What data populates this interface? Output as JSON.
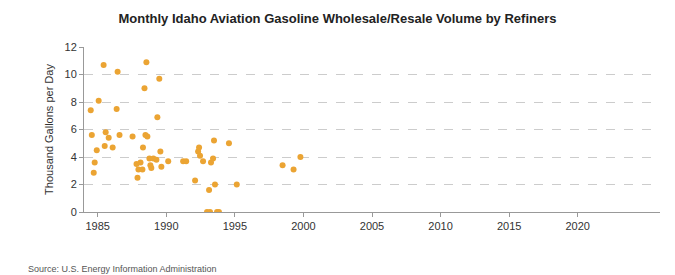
{
  "chart_data": {
    "type": "scatter",
    "title": "Monthly Idaho Aviation Gasoline Wholesale/Resale Volume by Refiners",
    "y_label": "Thousand Gallons per Day",
    "source": "Source: U.S. Energy Information Administration",
    "x": [
      1984.49,
      1984.57,
      1984.71,
      1984.78,
      1984.93,
      1985.07,
      1985.43,
      1985.51,
      1985.58,
      1985.8,
      1986.09,
      1986.38,
      1986.45,
      1986.59,
      1987.54,
      1987.83,
      1987.9,
      1987.97,
      1988.12,
      1988.26,
      1988.3,
      1988.41,
      1988.48,
      1988.55,
      1988.62,
      1988.77,
      1988.84,
      1988.91,
      1989.06,
      1989.28,
      1989.35,
      1989.49,
      1989.57,
      1989.64,
      1990.14,
      1991.23,
      1991.45,
      1992.1,
      1992.32,
      1992.39,
      1992.46,
      1992.68,
      1992.97,
      1993.12,
      1993.19,
      1993.26,
      1993.41,
      1993.48,
      1993.55,
      1993.7,
      1993.84,
      1994.57,
      1995.14,
      1998.48,
      1999.28,
      1999.78
    ],
    "values": [
      7.4,
      5.6,
      2.85,
      3.6,
      4.5,
      8.1,
      10.7,
      4.8,
      5.8,
      5.4,
      4.7,
      7.5,
      10.2,
      5.6,
      5.5,
      3.5,
      2.5,
      3.1,
      3.6,
      3.1,
      4.7,
      9.0,
      5.6,
      10.9,
      5.5,
      3.9,
      3.4,
      3.2,
      3.9,
      3.8,
      6.9,
      9.7,
      4.4,
      3.3,
      3.7,
      3.7,
      3.7,
      2.3,
      4.4,
      4.7,
      4.1,
      3.7,
      0,
      1.6,
      0,
      3.6,
      3.9,
      5.2,
      2.0,
      0,
      0,
      5.0,
      2.0,
      3.4,
      3.1,
      4.0
    ],
    "color": "#eba433",
    "marker": "circle",
    "xlim": [
      1984,
      2026
    ],
    "xticks": [
      1985,
      1990,
      1995,
      2000,
      2005,
      2010,
      2015,
      2020
    ],
    "ylim": [
      0,
      12
    ],
    "yticks": [
      0,
      2,
      4,
      6,
      8,
      10,
      12
    ],
    "grid": true
  }
}
